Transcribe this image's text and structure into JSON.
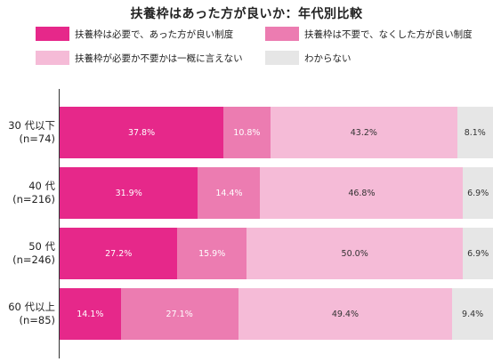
{
  "title": "扶養枠はあった方が良いか：年代別比較",
  "legend": [
    {
      "label": "扶養枠は必要で、あった方が良い制度",
      "color": "#e6288a"
    },
    {
      "label": "扶養枠は不要で、なくした方が良い制度",
      "color": "#ec7cb1"
    },
    {
      "label": "扶養枠が必要か不要かは一概に言えない",
      "color": "#f5bbd7"
    },
    {
      "label": "わからない",
      "color": "#e6e6e6"
    }
  ],
  "chart_data": {
    "type": "bar",
    "orientation": "horizontal",
    "stacked": true,
    "title": "扶養枠はあった方が良いか：年代別比較",
    "categories": [
      {
        "label_line1": "30 代以下",
        "label_line2": "(n=74)"
      },
      {
        "label_line1": "40 代",
        "label_line2": "(n=216)"
      },
      {
        "label_line1": "50 代",
        "label_line2": "(n=246)"
      },
      {
        "label_line1": "60 代以上",
        "label_line2": "(n=85)"
      }
    ],
    "series": [
      {
        "name": "扶養枠は必要で、あった方が良い制度",
        "color": "#e6288a",
        "values": [
          37.8,
          31.9,
          27.2,
          14.1
        ],
        "labels": [
          "37.8%",
          "31.9%",
          "27.2%",
          "14.1%"
        ]
      },
      {
        "name": "扶養枠は不要で、なくした方が良い制度",
        "color": "#ec7cb1",
        "values": [
          10.8,
          14.4,
          15.9,
          27.1
        ],
        "labels": [
          "10.8%",
          "14.4%",
          "15.9%",
          "27.1%"
        ]
      },
      {
        "name": "扶養枠が必要か不要かは一概に言えない",
        "color": "#f5bbd7",
        "values": [
          43.2,
          46.8,
          50.0,
          49.4
        ],
        "labels": [
          "43.2%",
          "46.8%",
          "50.0%",
          "49.4%"
        ]
      },
      {
        "name": "わからない",
        "color": "#e6e6e6",
        "values": [
          8.1,
          6.9,
          6.9,
          9.4
        ],
        "labels": [
          "8.1%",
          "6.9%",
          "6.9%",
          "9.4%"
        ]
      }
    ],
    "xlim": [
      0,
      100
    ],
    "grid": false,
    "legend_position": "top"
  }
}
